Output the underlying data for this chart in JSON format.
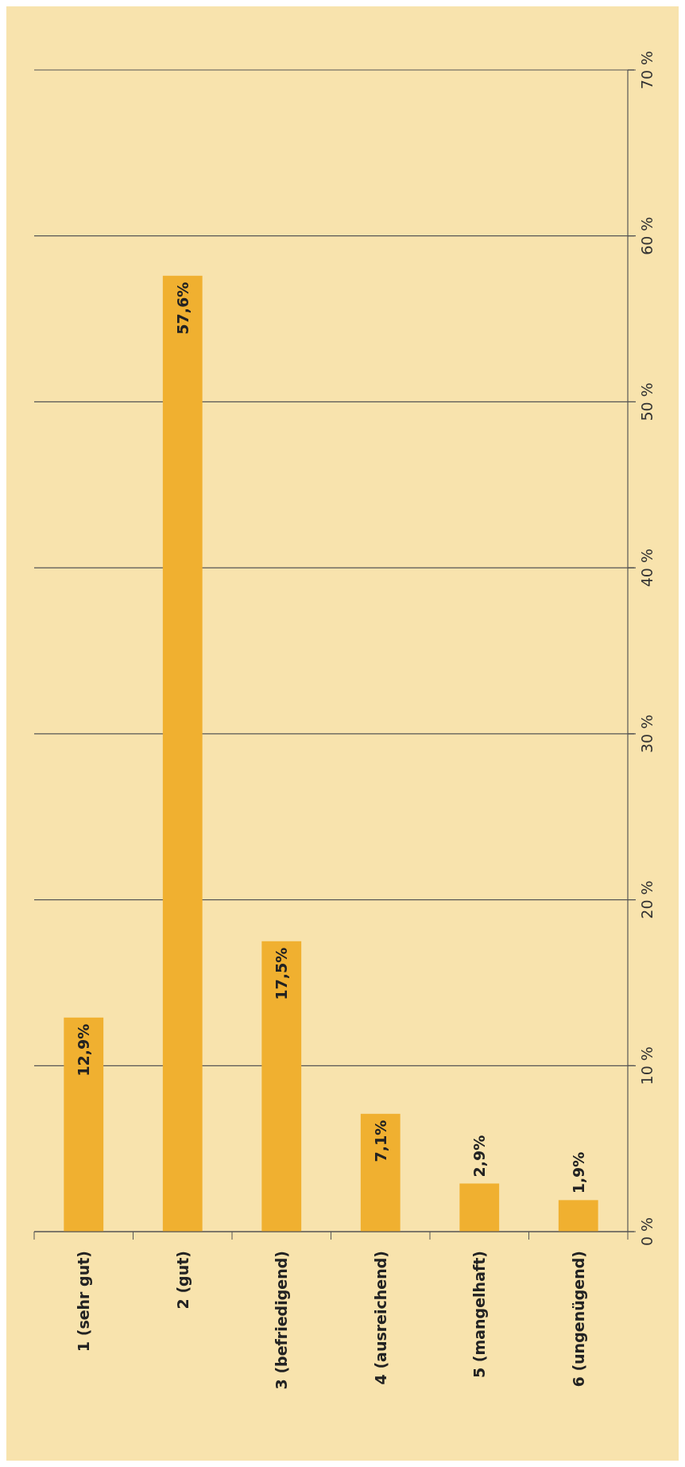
{
  "chart_data": {
    "type": "bar",
    "categories": [
      "1 (sehr gut)",
      "2 (gut)",
      "3 (befriedigend)",
      "4 (ausreichend)",
      "5 (mangelhaft)",
      "6 (ungenügend)"
    ],
    "values": [
      12.9,
      57.6,
      17.5,
      7.1,
      2.9,
      1.9
    ],
    "value_labels": [
      "12,9%",
      "57,6%",
      "17,5%",
      "7,1%",
      "2,9%",
      "1,9%"
    ],
    "color": "#f0b030",
    "ylim": [
      0,
      70
    ],
    "yticks": [
      {
        "value": 0,
        "label": "0 %"
      },
      {
        "value": 10,
        "label": "10 %"
      },
      {
        "value": 20,
        "label": "20 %"
      },
      {
        "value": 30,
        "label": "30 %"
      },
      {
        "value": 40,
        "label": "40 %"
      },
      {
        "value": 50,
        "label": "50 %"
      },
      {
        "value": 60,
        "label": "60 %"
      },
      {
        "value": 70,
        "label": "70 %"
      }
    ],
    "grid": "y"
  }
}
